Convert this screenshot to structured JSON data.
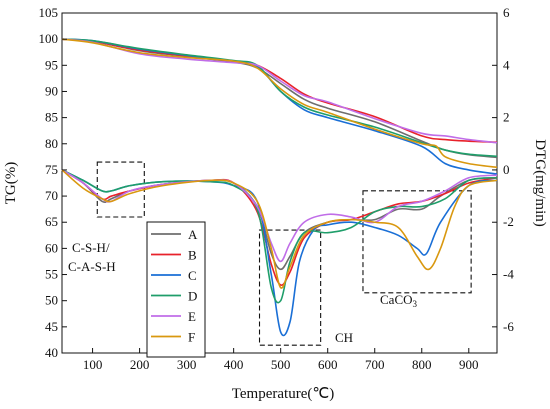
{
  "chart_data": {
    "type": "line",
    "xlabel": "Temperature(℃)",
    "ylabel_left": "TG(%)",
    "ylabel_right": "DTG(mg/min)",
    "xlim": [
      35,
      960
    ],
    "ylim_left": [
      40,
      105
    ],
    "ylim_right": [
      -7,
      6
    ],
    "x_ticks": [
      100,
      200,
      300,
      400,
      500,
      600,
      700,
      800,
      900
    ],
    "y_left_ticks": [
      40,
      45,
      50,
      55,
      60,
      65,
      70,
      75,
      80,
      85,
      90,
      95,
      100,
      105
    ],
    "y_right_ticks": [
      -6,
      -4,
      -2,
      0,
      2,
      4,
      6
    ],
    "legend": [
      "A",
      "B",
      "C",
      "D",
      "E",
      "F"
    ],
    "annotations": {
      "csh": [
        "C-S-H/",
        "C-A-S-H"
      ],
      "ch": "CH",
      "caco3_main": "CaCO",
      "caco3_sub": "3"
    },
    "series": [
      {
        "name": "A",
        "color": "#6e6e6e",
        "tg": [
          [
            35,
            100
          ],
          [
            100,
            99.6
          ],
          [
            200,
            97.8
          ],
          [
            300,
            96.7
          ],
          [
            400,
            95.6
          ],
          [
            450,
            94.5
          ],
          [
            500,
            91.5
          ],
          [
            550,
            88.5
          ],
          [
            600,
            86.8
          ],
          [
            700,
            84.2
          ],
          [
            800,
            80.5
          ],
          [
            850,
            78.8
          ],
          [
            900,
            77.9
          ],
          [
            960,
            77.4
          ]
        ],
        "dtg": [
          [
            35,
            0
          ],
          [
            80,
            -0.5
          ],
          [
            120,
            -1.2
          ],
          [
            140,
            -1.1
          ],
          [
            180,
            -0.8
          ],
          [
            250,
            -0.55
          ],
          [
            350,
            -0.4
          ],
          [
            400,
            -0.5
          ],
          [
            450,
            -1.4
          ],
          [
            480,
            -3.2
          ],
          [
            500,
            -3.8
          ],
          [
            520,
            -3.3
          ],
          [
            550,
            -2.4
          ],
          [
            600,
            -2.0
          ],
          [
            650,
            -1.9
          ],
          [
            700,
            -1.9
          ],
          [
            750,
            -1.5
          ],
          [
            800,
            -1.5
          ],
          [
            840,
            -1.0
          ],
          [
            900,
            -0.4
          ],
          [
            960,
            -0.3
          ]
        ]
      },
      {
        "name": "B",
        "color": "#e8222b",
        "tg": [
          [
            35,
            100
          ],
          [
            100,
            99.6
          ],
          [
            200,
            97.9
          ],
          [
            300,
            96.8
          ],
          [
            400,
            95.8
          ],
          [
            450,
            95.0
          ],
          [
            500,
            92.5
          ],
          [
            550,
            89.5
          ],
          [
            600,
            87.8
          ],
          [
            700,
            85.2
          ],
          [
            800,
            81.5
          ],
          [
            850,
            80.8
          ],
          [
            900,
            80.5
          ],
          [
            960,
            80.3
          ]
        ],
        "dtg": [
          [
            35,
            0
          ],
          [
            80,
            -0.5
          ],
          [
            120,
            -1.1
          ],
          [
            140,
            -1.0
          ],
          [
            180,
            -0.8
          ],
          [
            250,
            -0.55
          ],
          [
            350,
            -0.4
          ],
          [
            400,
            -0.5
          ],
          [
            450,
            -1.6
          ],
          [
            480,
            -3.6
          ],
          [
            500,
            -4.4
          ],
          [
            520,
            -3.9
          ],
          [
            550,
            -2.6
          ],
          [
            600,
            -2.0
          ],
          [
            650,
            -1.9
          ],
          [
            700,
            -1.6
          ],
          [
            750,
            -1.3
          ],
          [
            800,
            -1.2
          ],
          [
            850,
            -0.9
          ],
          [
            900,
            -0.5
          ],
          [
            960,
            -0.3
          ]
        ]
      },
      {
        "name": "C",
        "color": "#1a6fd6",
        "tg": [
          [
            35,
            100
          ],
          [
            100,
            99.7
          ],
          [
            200,
            98.1
          ],
          [
            300,
            96.9
          ],
          [
            400,
            95.8
          ],
          [
            450,
            94.8
          ],
          [
            500,
            90.0
          ],
          [
            550,
            86.5
          ],
          [
            600,
            85.0
          ],
          [
            700,
            82.5
          ],
          [
            800,
            79.5
          ],
          [
            850,
            76.2
          ],
          [
            900,
            75.0
          ],
          [
            960,
            74.2
          ]
        ],
        "dtg": [
          [
            35,
            0
          ],
          [
            80,
            -0.4
          ],
          [
            120,
            -0.8
          ],
          [
            140,
            -0.8
          ],
          [
            180,
            -0.6
          ],
          [
            250,
            -0.45
          ],
          [
            350,
            -0.45
          ],
          [
            400,
            -0.6
          ],
          [
            450,
            -1.2
          ],
          [
            480,
            -4.0
          ],
          [
            500,
            -6.2
          ],
          [
            520,
            -5.8
          ],
          [
            540,
            -3.5
          ],
          [
            570,
            -2.3
          ],
          [
            600,
            -2.1
          ],
          [
            650,
            -2.0
          ],
          [
            700,
            -2.2
          ],
          [
            750,
            -2.5
          ],
          [
            790,
            -3.0
          ],
          [
            810,
            -3.2
          ],
          [
            840,
            -2.0
          ],
          [
            900,
            -0.6
          ],
          [
            960,
            -0.4
          ]
        ]
      },
      {
        "name": "D",
        "color": "#1f9e6a",
        "tg": [
          [
            35,
            100
          ],
          [
            100,
            99.7
          ],
          [
            200,
            98.2
          ],
          [
            300,
            97.0
          ],
          [
            400,
            95.9
          ],
          [
            450,
            95.0
          ],
          [
            500,
            90.0
          ],
          [
            550,
            87.0
          ],
          [
            600,
            85.5
          ],
          [
            700,
            83.2
          ],
          [
            800,
            80.2
          ],
          [
            850,
            78.8
          ],
          [
            900,
            78.0
          ],
          [
            960,
            77.6
          ]
        ],
        "dtg": [
          [
            35,
            0
          ],
          [
            80,
            -0.4
          ],
          [
            120,
            -0.8
          ],
          [
            140,
            -0.8
          ],
          [
            180,
            -0.6
          ],
          [
            250,
            -0.45
          ],
          [
            350,
            -0.45
          ],
          [
            400,
            -0.6
          ],
          [
            450,
            -1.5
          ],
          [
            480,
            -4.5
          ],
          [
            500,
            -5.0
          ],
          [
            520,
            -3.5
          ],
          [
            550,
            -2.4
          ],
          [
            600,
            -2.4
          ],
          [
            650,
            -2.2
          ],
          [
            700,
            -1.6
          ],
          [
            750,
            -1.4
          ],
          [
            800,
            -1.4
          ],
          [
            850,
            -1.1
          ],
          [
            900,
            -0.4
          ],
          [
            960,
            -0.3
          ]
        ]
      },
      {
        "name": "E",
        "color": "#c06de8",
        "tg": [
          [
            35,
            100
          ],
          [
            100,
            99.4
          ],
          [
            200,
            97.2
          ],
          [
            300,
            96.2
          ],
          [
            400,
            95.5
          ],
          [
            450,
            95.0
          ],
          [
            500,
            92.0
          ],
          [
            550,
            89.2
          ],
          [
            600,
            88.0
          ],
          [
            700,
            84.8
          ],
          [
            800,
            82.0
          ],
          [
            850,
            81.5
          ],
          [
            900,
            80.8
          ],
          [
            960,
            80.2
          ]
        ],
        "dtg": [
          [
            35,
            0
          ],
          [
            80,
            -0.5
          ],
          [
            120,
            -1.1
          ],
          [
            140,
            -1.2
          ],
          [
            180,
            -0.8
          ],
          [
            250,
            -0.55
          ],
          [
            350,
            -0.4
          ],
          [
            400,
            -0.5
          ],
          [
            450,
            -1.4
          ],
          [
            480,
            -2.8
          ],
          [
            500,
            -3.5
          ],
          [
            520,
            -2.8
          ],
          [
            550,
            -2.0
          ],
          [
            600,
            -1.7
          ],
          [
            650,
            -1.8
          ],
          [
            700,
            -2.0
          ],
          [
            750,
            -1.4
          ],
          [
            800,
            -1.2
          ],
          [
            850,
            -0.8
          ],
          [
            900,
            -0.3
          ],
          [
            960,
            -0.2
          ]
        ]
      },
      {
        "name": "F",
        "color": "#d9980f",
        "tg": [
          [
            35,
            100
          ],
          [
            100,
            99.3
          ],
          [
            200,
            97.4
          ],
          [
            300,
            96.5
          ],
          [
            400,
            95.8
          ],
          [
            450,
            94.5
          ],
          [
            500,
            90.5
          ],
          [
            550,
            87.5
          ],
          [
            600,
            86.0
          ],
          [
            700,
            82.8
          ],
          [
            800,
            80.0
          ],
          [
            830,
            79.6
          ],
          [
            850,
            77.5
          ],
          [
            900,
            76.2
          ],
          [
            960,
            75.5
          ]
        ],
        "dtg": [
          [
            35,
            0
          ],
          [
            80,
            -0.7
          ],
          [
            120,
            -1.1
          ],
          [
            140,
            -1.2
          ],
          [
            180,
            -0.9
          ],
          [
            250,
            -0.6
          ],
          [
            350,
            -0.4
          ],
          [
            400,
            -0.5
          ],
          [
            450,
            -1.2
          ],
          [
            480,
            -3.0
          ],
          [
            500,
            -4.5
          ],
          [
            520,
            -3.7
          ],
          [
            550,
            -2.5
          ],
          [
            600,
            -2.0
          ],
          [
            650,
            -1.9
          ],
          [
            700,
            -2.0
          ],
          [
            750,
            -2.2
          ],
          [
            790,
            -3.3
          ],
          [
            815,
            -3.8
          ],
          [
            840,
            -3.0
          ],
          [
            870,
            -1.4
          ],
          [
            900,
            -0.6
          ],
          [
            960,
            -0.4
          ]
        ]
      }
    ]
  }
}
